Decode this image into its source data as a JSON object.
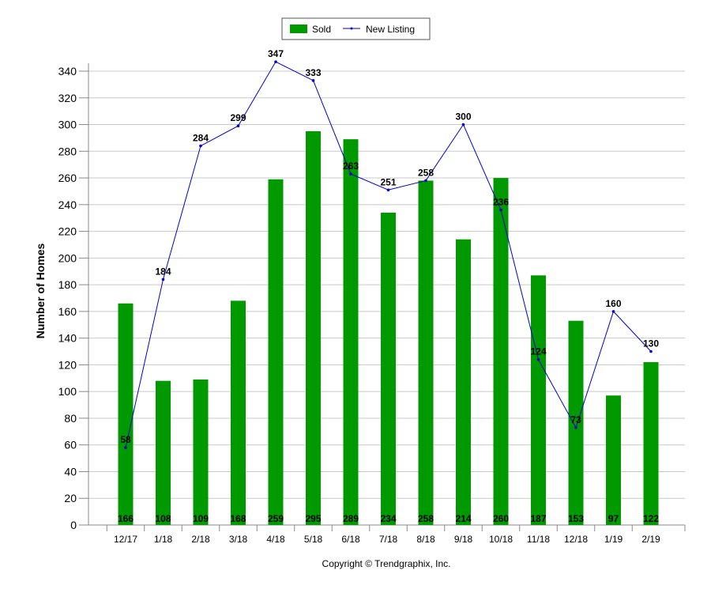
{
  "chart_data": {
    "type": "bar",
    "categories": [
      "12/17",
      "1/18",
      "2/18",
      "3/18",
      "4/18",
      "5/18",
      "6/18",
      "7/18",
      "8/18",
      "9/18",
      "10/18",
      "11/18",
      "12/18",
      "1/19",
      "2/19"
    ],
    "series": [
      {
        "name": "Sold",
        "type": "bar",
        "color": "#009900",
        "values": [
          166,
          108,
          109,
          168,
          259,
          295,
          289,
          234,
          258,
          214,
          260,
          187,
          153,
          97,
          122
        ]
      },
      {
        "name": "New Listing",
        "type": "line",
        "color": "#0000cc",
        "values": [
          58,
          184,
          284,
          299,
          347,
          333,
          263,
          251,
          258,
          300,
          236,
          124,
          73,
          160,
          130
        ]
      }
    ],
    "ylabel": "Number of Homes",
    "xlabel": "",
    "ylim": [
      0,
      340
    ],
    "yticks": [
      0,
      20,
      40,
      60,
      80,
      100,
      120,
      140,
      160,
      180,
      200,
      220,
      240,
      260,
      280,
      300,
      320,
      340
    ],
    "grid": true,
    "legend_position": "top-center"
  },
  "footer": {
    "copyright": "Copyright © Trendgraphix, Inc."
  }
}
